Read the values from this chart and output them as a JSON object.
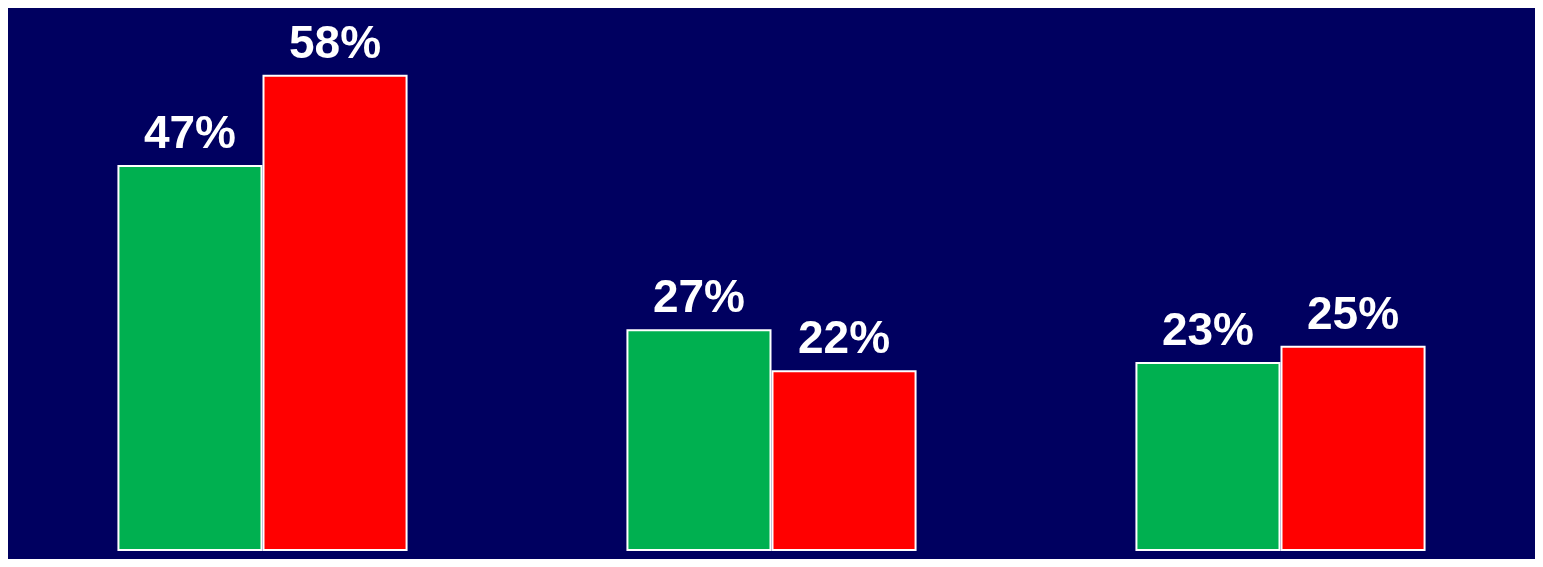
{
  "chart_data": {
    "type": "bar",
    "categories": [
      null,
      null,
      null
    ],
    "series": [
      {
        "color": "#00b050",
        "values": [
          47,
          27,
          23
        ],
        "value_labels": [
          "47%",
          "27%",
          "23%"
        ]
      },
      {
        "color": "#ff0000",
        "values": [
          58,
          22,
          25
        ],
        "value_labels": [
          "58%",
          "22%",
          "25%"
        ]
      }
    ]
  }
}
